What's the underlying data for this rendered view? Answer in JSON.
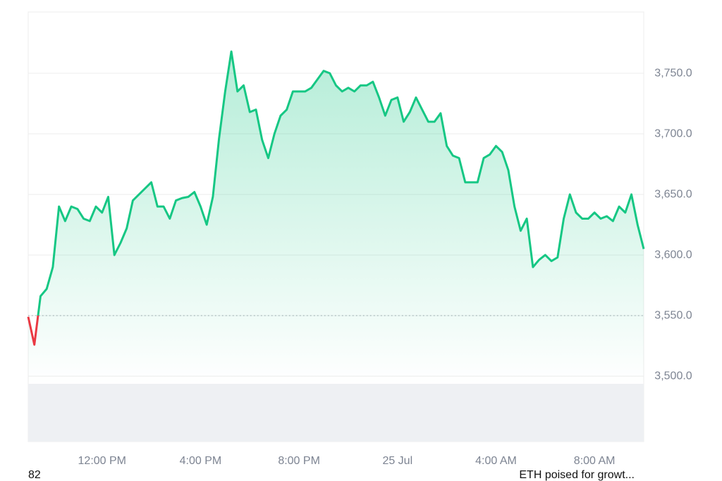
{
  "chart_data": {
    "type": "line",
    "color": "#16c784",
    "below_color": "#ea3943",
    "baseline": 3550,
    "grid": true,
    "x": [
      9,
      9.25,
      9.5,
      9.75,
      10,
      10.25,
      10.5,
      10.75,
      11,
      11.25,
      11.5,
      11.75,
      12,
      12.25,
      12.5,
      12.75,
      13,
      13.25,
      13.5,
      13.75,
      14,
      14.25,
      14.5,
      14.75,
      15,
      15.25,
      15.5,
      15.75,
      16,
      16.25,
      16.5,
      16.75,
      17,
      17.25,
      17.5,
      17.75,
      18,
      18.25,
      18.5,
      18.75,
      19,
      19.25,
      19.5,
      19.75,
      20,
      20.25,
      20.5,
      20.75,
      21,
      21.25,
      21.5,
      21.75,
      22,
      22.25,
      22.5,
      22.75,
      23,
      23.25,
      23.5,
      23.75,
      24,
      24.25,
      24.5,
      24.75,
      25,
      25.25,
      25.5,
      25.75,
      26,
      26.25,
      26.5,
      26.75,
      27,
      27.25,
      27.5,
      27.75,
      28,
      28.25,
      28.5,
      28.75,
      29,
      29.25,
      29.5,
      29.75,
      30,
      30.25,
      30.5,
      30.75,
      31,
      31.25,
      31.5,
      31.75,
      32,
      32.25,
      32.5,
      32.75,
      33,
      33.25,
      33.5,
      33.75,
      34
    ],
    "values": [
      3549,
      3526,
      3566,
      3572,
      3590,
      3640,
      3628,
      3640,
      3638,
      3630,
      3628,
      3640,
      3635,
      3648,
      3600,
      3610,
      3622,
      3645,
      3650,
      3655,
      3660,
      3640,
      3640,
      3630,
      3645,
      3647,
      3648,
      3652,
      3640,
      3625,
      3648,
      3696,
      3735,
      3768,
      3735,
      3740,
      3718,
      3720,
      3695,
      3680,
      3700,
      3715,
      3720,
      3735,
      3735,
      3735,
      3738,
      3745,
      3752,
      3750,
      3740,
      3735,
      3738,
      3735,
      3740,
      3740,
      3743,
      3730,
      3715,
      3728,
      3730,
      3710,
      3718,
      3730,
      3720,
      3710,
      3710,
      3717,
      3690,
      3682,
      3680,
      3660,
      3660,
      3660,
      3680,
      3683,
      3690,
      3685,
      3670,
      3640,
      3620,
      3630,
      3590,
      3596,
      3600,
      3595,
      3598,
      3630,
      3650,
      3635,
      3630,
      3630,
      3635,
      3630,
      3632,
      3628,
      3640,
      3635,
      3650,
      3625,
      3605
    ],
    "xlim": [
      9,
      34
    ],
    "xticks": [
      {
        "value": 12,
        "label": "12:00 PM"
      },
      {
        "value": 16,
        "label": "4:00 PM"
      },
      {
        "value": 20,
        "label": "8:00 PM"
      },
      {
        "value": 24,
        "label": "25 Jul"
      },
      {
        "value": 28,
        "label": "4:00 AM"
      },
      {
        "value": 32,
        "label": "8:00 AM"
      }
    ],
    "ylim": [
      3446,
      3800.6
    ],
    "yticks": [
      {
        "value": 3500,
        "label": "3,500.0"
      },
      {
        "value": 3550,
        "label": "3,550.0"
      },
      {
        "value": 3600,
        "label": "3,600.0"
      },
      {
        "value": 3650,
        "label": "3,650.0"
      },
      {
        "value": 3700,
        "label": "3,700.0"
      },
      {
        "value": 3750,
        "label": "3,750.0"
      }
    ],
    "footer_left": "82",
    "footer_right": "ETH poised for growt..."
  }
}
